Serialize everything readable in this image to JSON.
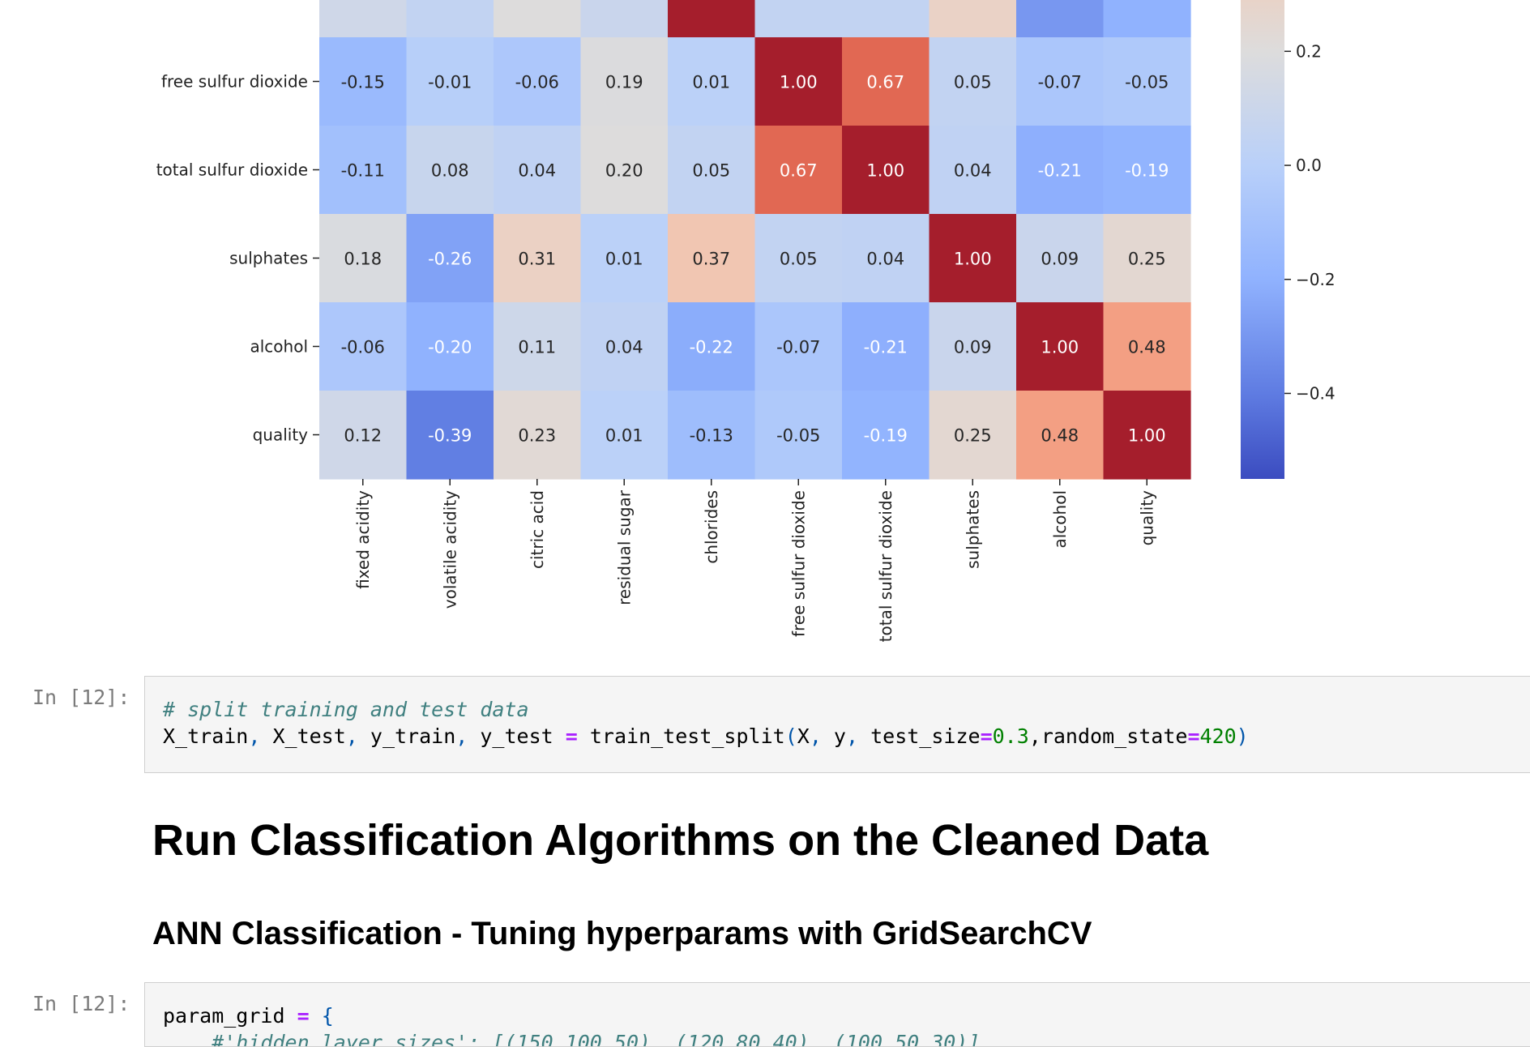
{
  "chart_data": {
    "type": "heatmap",
    "title": "",
    "xlabel": "",
    "ylabel": "",
    "colormap": "coolwarm",
    "colorbar_ticks": [
      "0.2",
      "0.0",
      "−0.2",
      "−0.4"
    ],
    "x_labels": [
      "fixed acidity",
      "volatile acidity",
      "citric acid",
      "residual sugar",
      "chlorides",
      "free sulfur dioxide",
      "total sulfur dioxide",
      "sulphates",
      "alcohol",
      "quality"
    ],
    "rows": [
      {
        "label": "free sulfur dioxide",
        "values": [
          -0.15,
          -0.01,
          -0.06,
          0.19,
          0.01,
          1.0,
          0.67,
          0.05,
          -0.07,
          -0.05
        ]
      },
      {
        "label": "total sulfur dioxide",
        "values": [
          -0.11,
          0.08,
          0.04,
          0.2,
          0.05,
          0.67,
          1.0,
          0.04,
          -0.21,
          -0.19
        ]
      },
      {
        "label": "sulphates",
        "values": [
          0.18,
          -0.26,
          0.31,
          0.01,
          0.37,
          0.05,
          0.04,
          1.0,
          0.09,
          0.25
        ]
      },
      {
        "label": "alcohol",
        "values": [
          -0.06,
          -0.2,
          0.11,
          0.04,
          -0.22,
          -0.07,
          -0.21,
          0.09,
          1.0,
          0.48
        ]
      },
      {
        "label": "quality",
        "values": [
          0.12,
          -0.39,
          0.23,
          0.01,
          -0.13,
          -0.05,
          -0.19,
          0.25,
          0.48,
          1.0
        ]
      }
    ],
    "partial_top_row_values": [
      0.12,
      0.05,
      0.2,
      0.09,
      1.0,
      0.05,
      0.05,
      0.3,
      -0.3,
      -0.2
    ],
    "vmin": -0.55,
    "vmax": 1.0
  },
  "cells": {
    "split": {
      "prompt": "In [12]:",
      "comment": "# split training and test data",
      "code": {
        "t1": "X_train",
        "c1": ",",
        "t2": " X_test",
        "c2": ",",
        "t3": " y_train",
        "c3": ",",
        "t4": " y_test ",
        "eq": "=",
        "t5": " train_test_split",
        "lp": "(",
        "t6": "X",
        "c4": ",",
        "t7": " y",
        "c5": ",",
        "t8": " test_size",
        "eq2": "=",
        "n1": "0.3",
        "t9": ",random_state",
        "eq3": "=",
        "n2": "420",
        "rp": ")"
      }
    },
    "grid": {
      "prompt": "In [12]:",
      "code": {
        "t1": "param_grid ",
        "eq": "=",
        "t2": " ",
        "lb": "{"
      },
      "comment_partial": "    #'hidden_layer_sizes': [(150,100,50), (120,80,40), (100,50,30)],"
    }
  },
  "markdown": {
    "h1": "Run Classification Algorithms on the Cleaned Data",
    "h2": "ANN Classification - Tuning hyperparams with GridSearchCV"
  }
}
